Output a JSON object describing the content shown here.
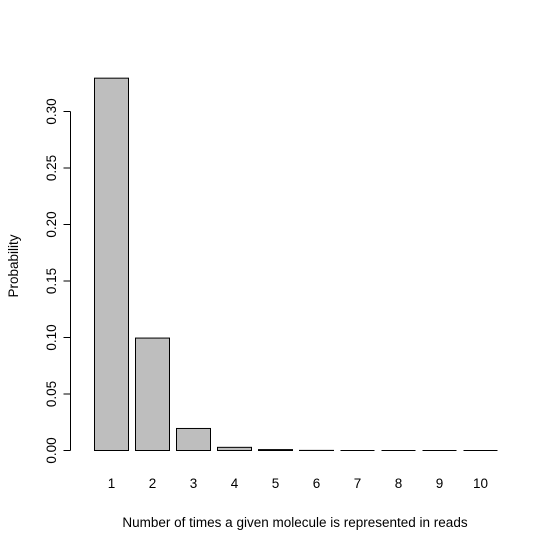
{
  "chart_data": {
    "type": "bar",
    "title": "",
    "xlabel": "Number of times a given molecule is represented in reads",
    "ylabel": "Probability",
    "categories": [
      "1",
      "2",
      "3",
      "4",
      "5",
      "6",
      "7",
      "8",
      "9",
      "10"
    ],
    "values": [
      0.3295,
      0.0995,
      0.0195,
      0.0028,
      0.0008,
      0.0001,
      0.0,
      0.0,
      0.0,
      0.0
    ],
    "yticks": [
      "0.00",
      "0.05",
      "0.10",
      "0.15",
      "0.20",
      "0.25",
      "0.30"
    ],
    "ylim": [
      0,
      0.33
    ],
    "grid": false,
    "colors": {
      "bar_fill": "#bebebe",
      "bar_stroke": "#000000",
      "axis": "#000000"
    }
  }
}
